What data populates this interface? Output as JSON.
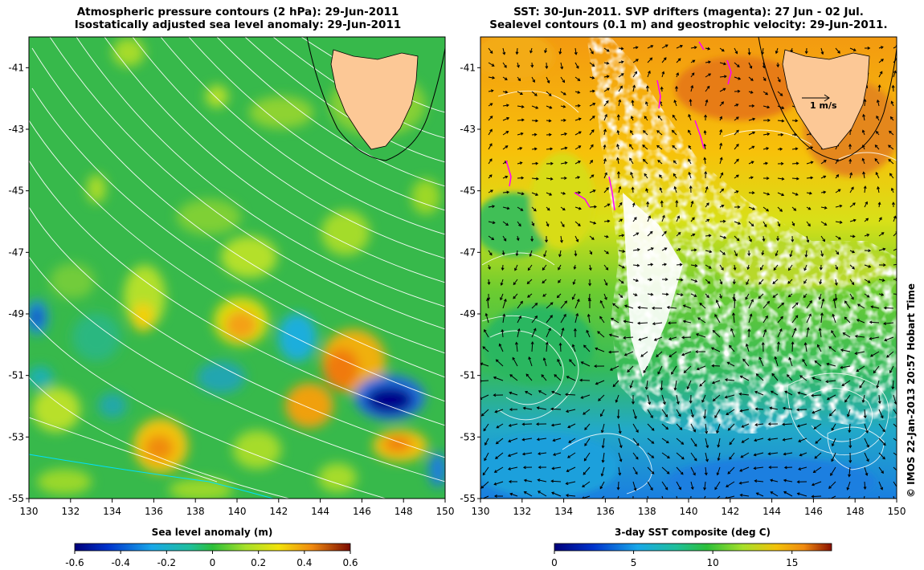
{
  "left_panel": {
    "title_line1": "Atmospheric pressure contours (2 hPa): 29-Jun-2011",
    "title_line2": "Isostatically adjusted sea level anomaly: 29-Jun-2011",
    "colorbar": {
      "label": "Sea level anomaly (m)",
      "ticks": [
        "-0.6",
        "-0.4",
        "-0.2",
        "0",
        "0.2",
        "0.4",
        "0.6"
      ],
      "range": [
        -0.6,
        0.6
      ]
    }
  },
  "right_panel": {
    "title_line1": "SST: 30-Jun-2011. SVP drifters (magenta): 27 Jun - 02 Jul.",
    "title_line2": "Sealevel contours (0.1 m) and geostrophic velocity: 29-Jun-2011.",
    "scale_label": "1 m/s",
    "colorbar": {
      "label": "3-day SST composite (deg C)",
      "ticks": [
        "0",
        "5",
        "10",
        "15"
      ],
      "range": [
        0,
        17.5
      ]
    }
  },
  "map": {
    "lon_ticks": [
      "130",
      "132",
      "134",
      "136",
      "138",
      "140",
      "142",
      "144",
      "146",
      "148",
      "150"
    ],
    "lat_ticks": [
      "-41",
      "-43",
      "-45",
      "-47",
      "-49",
      "-51",
      "-53",
      "-55"
    ],
    "lon_range": [
      130,
      150
    ],
    "lat_range": [
      -55,
      -40.0
    ]
  },
  "credit": "© IMOS 22-Jan-2013 20:57 Hobart Time",
  "colors": {
    "land": "#fcc896",
    "ocean_green": "#37b94b",
    "drifter": "#ff00ff",
    "cloud": "#ffffff"
  }
}
